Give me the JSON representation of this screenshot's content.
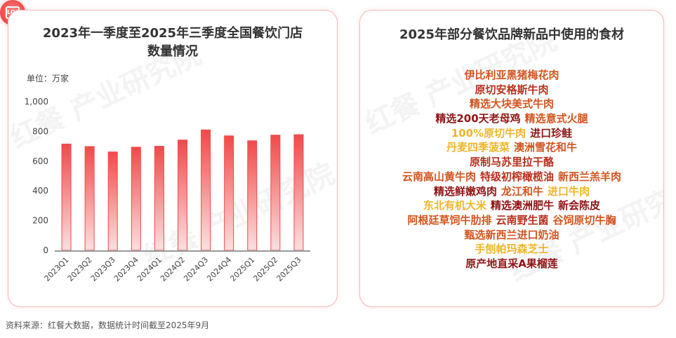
{
  "left_panel": {
    "title_line1": "2023年一季度至2025年三季度全国餐饮门店",
    "title_line2": "数量情况",
    "unit": "单位：万家"
  },
  "chart_data": {
    "type": "bar",
    "categories": [
      "2023Q1",
      "2023Q2",
      "2023Q3",
      "2023Q4",
      "2024Q1",
      "2024Q2",
      "2024Q3",
      "2024Q4",
      "2025Q1",
      "2025Q2",
      "2025Q3"
    ],
    "values": [
      715,
      698,
      662,
      694,
      700,
      742,
      810,
      770,
      737,
      775,
      778
    ],
    "ylim": [
      0,
      1000
    ],
    "yticks": [
      0,
      200,
      400,
      600,
      800,
      1000
    ],
    "ytick_labels": [
      "0",
      "200",
      "400",
      "600",
      "800",
      "1,000"
    ],
    "ylabel": "单位：万家",
    "grid": false,
    "colors": {
      "bar_top": "#f04a4a",
      "bar_bottom": "#fde0e0",
      "axis": "#999999"
    }
  },
  "right_panel": {
    "title": "2025年部分餐饮品牌新品中使用的食材",
    "lines": [
      [
        {
          "text": "伊比利亚黑猪梅花肉",
          "color": "#d2541f"
        }
      ],
      [
        {
          "text": "原切安格斯牛肉",
          "color": "#b8301e"
        }
      ],
      [
        {
          "text": "精选大块美式牛肉",
          "color": "#d2541f"
        }
      ],
      [
        {
          "text": "精选200天老母鸡",
          "color": "#8f1414"
        },
        {
          "text": "精选意式火腿",
          "color": "#d2541f"
        }
      ],
      [
        {
          "text": "100%原切牛肉",
          "color": "#efb42b"
        },
        {
          "text": "进口珍鲑",
          "color": "#8f1414"
        }
      ],
      [
        {
          "text": "丹麦四季菠菜",
          "color": "#efb42b"
        },
        {
          "text": "澳洲雪花和牛",
          "color": "#d2541f"
        }
      ],
      [
        {
          "text": "原制马苏里拉干酪",
          "color": "#b8301e"
        }
      ],
      [
        {
          "text": "云南高山黄牛肉",
          "color": "#d2541f"
        },
        {
          "text": "特级初榨橄榄油",
          "color": "#b8301e"
        },
        {
          "text": "新西兰羔羊肉",
          "color": "#d2541f"
        }
      ],
      [
        {
          "text": "精选鲜嫩鸡肉",
          "color": "#8f1414"
        },
        {
          "text": "龙江和牛",
          "color": "#d2541f"
        },
        {
          "text": "进口牛肉",
          "color": "#efb42b"
        }
      ],
      [
        {
          "text": "东北有机大米",
          "color": "#efb42b"
        },
        {
          "text": "精选澳洲肥牛",
          "color": "#8f1414"
        },
        {
          "text": "新会陈皮",
          "color": "#8f1414"
        }
      ],
      [
        {
          "text": "阿根廷草饲牛肋排",
          "color": "#d2541f"
        },
        {
          "text": "云南野生菌",
          "color": "#b8301e"
        },
        {
          "text": "谷饲原切牛胸",
          "color": "#d2541f"
        }
      ],
      [
        {
          "text": "甄选新西兰进口奶油",
          "color": "#d2541f"
        }
      ],
      [
        {
          "text": "手刨帕玛森芝士",
          "color": "#efb42b"
        }
      ],
      [
        {
          "text": "原产地直采A果榴莲",
          "color": "#8f1414"
        }
      ]
    ]
  },
  "watermark": "红餐 产业研究院",
  "logo": "LOGO",
  "footnote": "资料来源：红餐大数据，数据统计时间截至2025年9月"
}
